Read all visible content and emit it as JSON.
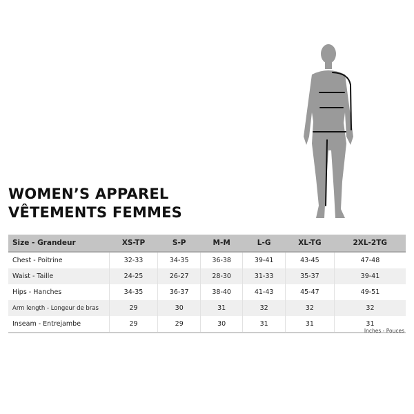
{
  "title": {
    "line1": "WOMEN’S APPAREL",
    "line2": "VÊTEMENTS FEMMES"
  },
  "table": {
    "headers": [
      "Size - Grandeur",
      "XS-TP",
      "S-P",
      "M-M",
      "L-G",
      "XL-TG",
      "2XL-2TG"
    ],
    "rows": [
      [
        "Chest - Poitrine",
        "32-33",
        "34-35",
        "36-38",
        "39-41",
        "43-45",
        "47-48"
      ],
      [
        "Waist - Taille",
        "24-25",
        "26-27",
        "28-30",
        "31-33",
        "35-37",
        "39-41"
      ],
      [
        "Hips - Hanches",
        "34-35",
        "36-37",
        "38-40",
        "41-43",
        "45-47",
        "49-51"
      ],
      [
        "Arm length - Longeur de bras",
        "29",
        "30",
        "31",
        "32",
        "32",
        "32"
      ],
      [
        "Inseam - Entrejambe",
        "29",
        "29",
        "30",
        "31",
        "31",
        "31"
      ]
    ]
  },
  "units": "Inches - Pouces",
  "colors": {
    "silhouette": "#999999",
    "header_bg": "#c4c4c4",
    "alt_row": "#efefef"
  }
}
